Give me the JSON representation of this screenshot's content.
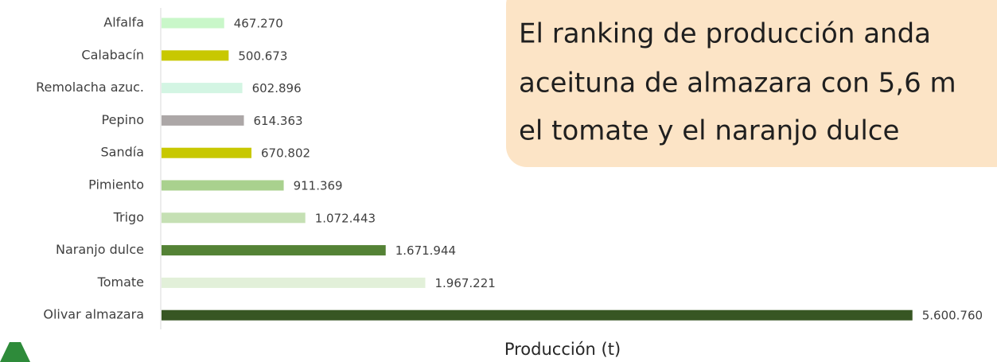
{
  "chart_data": {
    "type": "bar",
    "orientation": "horizontal",
    "categories": [
      "Alfalfa",
      "Calabacín",
      "Remolacha azuc.",
      "Pepino",
      "Sandía",
      "Pimiento",
      "Trigo",
      "Naranjo dulce",
      "Tomate",
      "Olivar almazara"
    ],
    "values": [
      467270,
      500673,
      602896,
      614363,
      670802,
      911369,
      1072443,
      1671944,
      1967221,
      5600760
    ],
    "value_labels": [
      "467.270",
      "500.673",
      "602.896",
      "614.363",
      "670.802",
      "911.369",
      "1.072.443",
      "1.671.944",
      "1.967.221",
      "5.600.760"
    ],
    "colors": [
      "#c9f7c9",
      "#c8c800",
      "#d3f5e3",
      "#aca7a7",
      "#c8c800",
      "#a9d18e",
      "#c5e0b4",
      "#548235",
      "#e2f0d9",
      "#375623"
    ],
    "xlim": [
      0,
      6000000
    ],
    "x_label": "Producción (t)",
    "annotation": [
      "El ranking de producción anda",
      "aceituna de almazara con 5,6 m",
      "el tomate y el naranjo dulce"
    ]
  }
}
